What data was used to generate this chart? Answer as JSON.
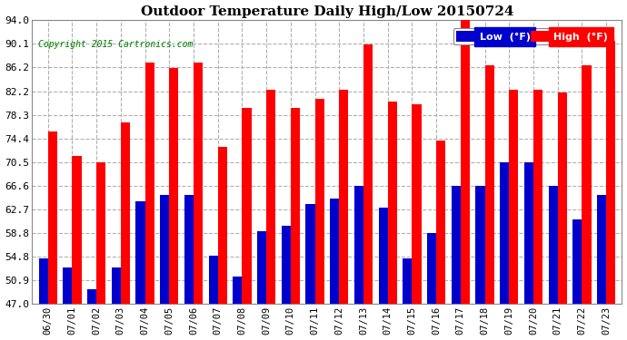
{
  "title": "Outdoor Temperature Daily High/Low 20150724",
  "copyright": "Copyright 2015 Cartronics.com",
  "dates": [
    "06/30",
    "07/01",
    "07/02",
    "07/03",
    "07/04",
    "07/05",
    "07/06",
    "07/07",
    "07/08",
    "07/09",
    "07/10",
    "07/11",
    "07/12",
    "07/13",
    "07/14",
    "07/15",
    "07/16",
    "07/17",
    "07/18",
    "07/19",
    "07/20",
    "07/21",
    "07/22",
    "07/23"
  ],
  "highs": [
    75.5,
    71.5,
    70.5,
    77.0,
    87.0,
    86.0,
    87.0,
    73.0,
    79.5,
    82.5,
    79.5,
    81.0,
    82.5,
    90.0,
    80.5,
    80.0,
    74.0,
    94.5,
    86.5,
    82.5,
    82.5,
    82.0,
    86.5,
    90.5
  ],
  "lows": [
    54.5,
    53.0,
    49.5,
    53.0,
    64.0,
    65.0,
    65.0,
    55.0,
    51.5,
    59.0,
    60.0,
    63.5,
    64.5,
    66.5,
    63.0,
    54.5,
    58.8,
    66.5,
    66.5,
    70.5,
    70.5,
    66.5,
    61.0,
    65.0
  ],
  "high_color": "#ff0000",
  "low_color": "#0000cc",
  "bg_color": "#ffffff",
  "grid_color": "#b0b0b0",
  "yticks": [
    47.0,
    50.9,
    54.8,
    58.8,
    62.7,
    66.6,
    70.5,
    74.4,
    78.3,
    82.2,
    86.2,
    90.1,
    94.0
  ],
  "ymin": 47.0,
  "ymax": 94.0,
  "bar_width": 0.38,
  "legend_low_label": "Low  (°F)",
  "legend_high_label": "High  (°F)"
}
